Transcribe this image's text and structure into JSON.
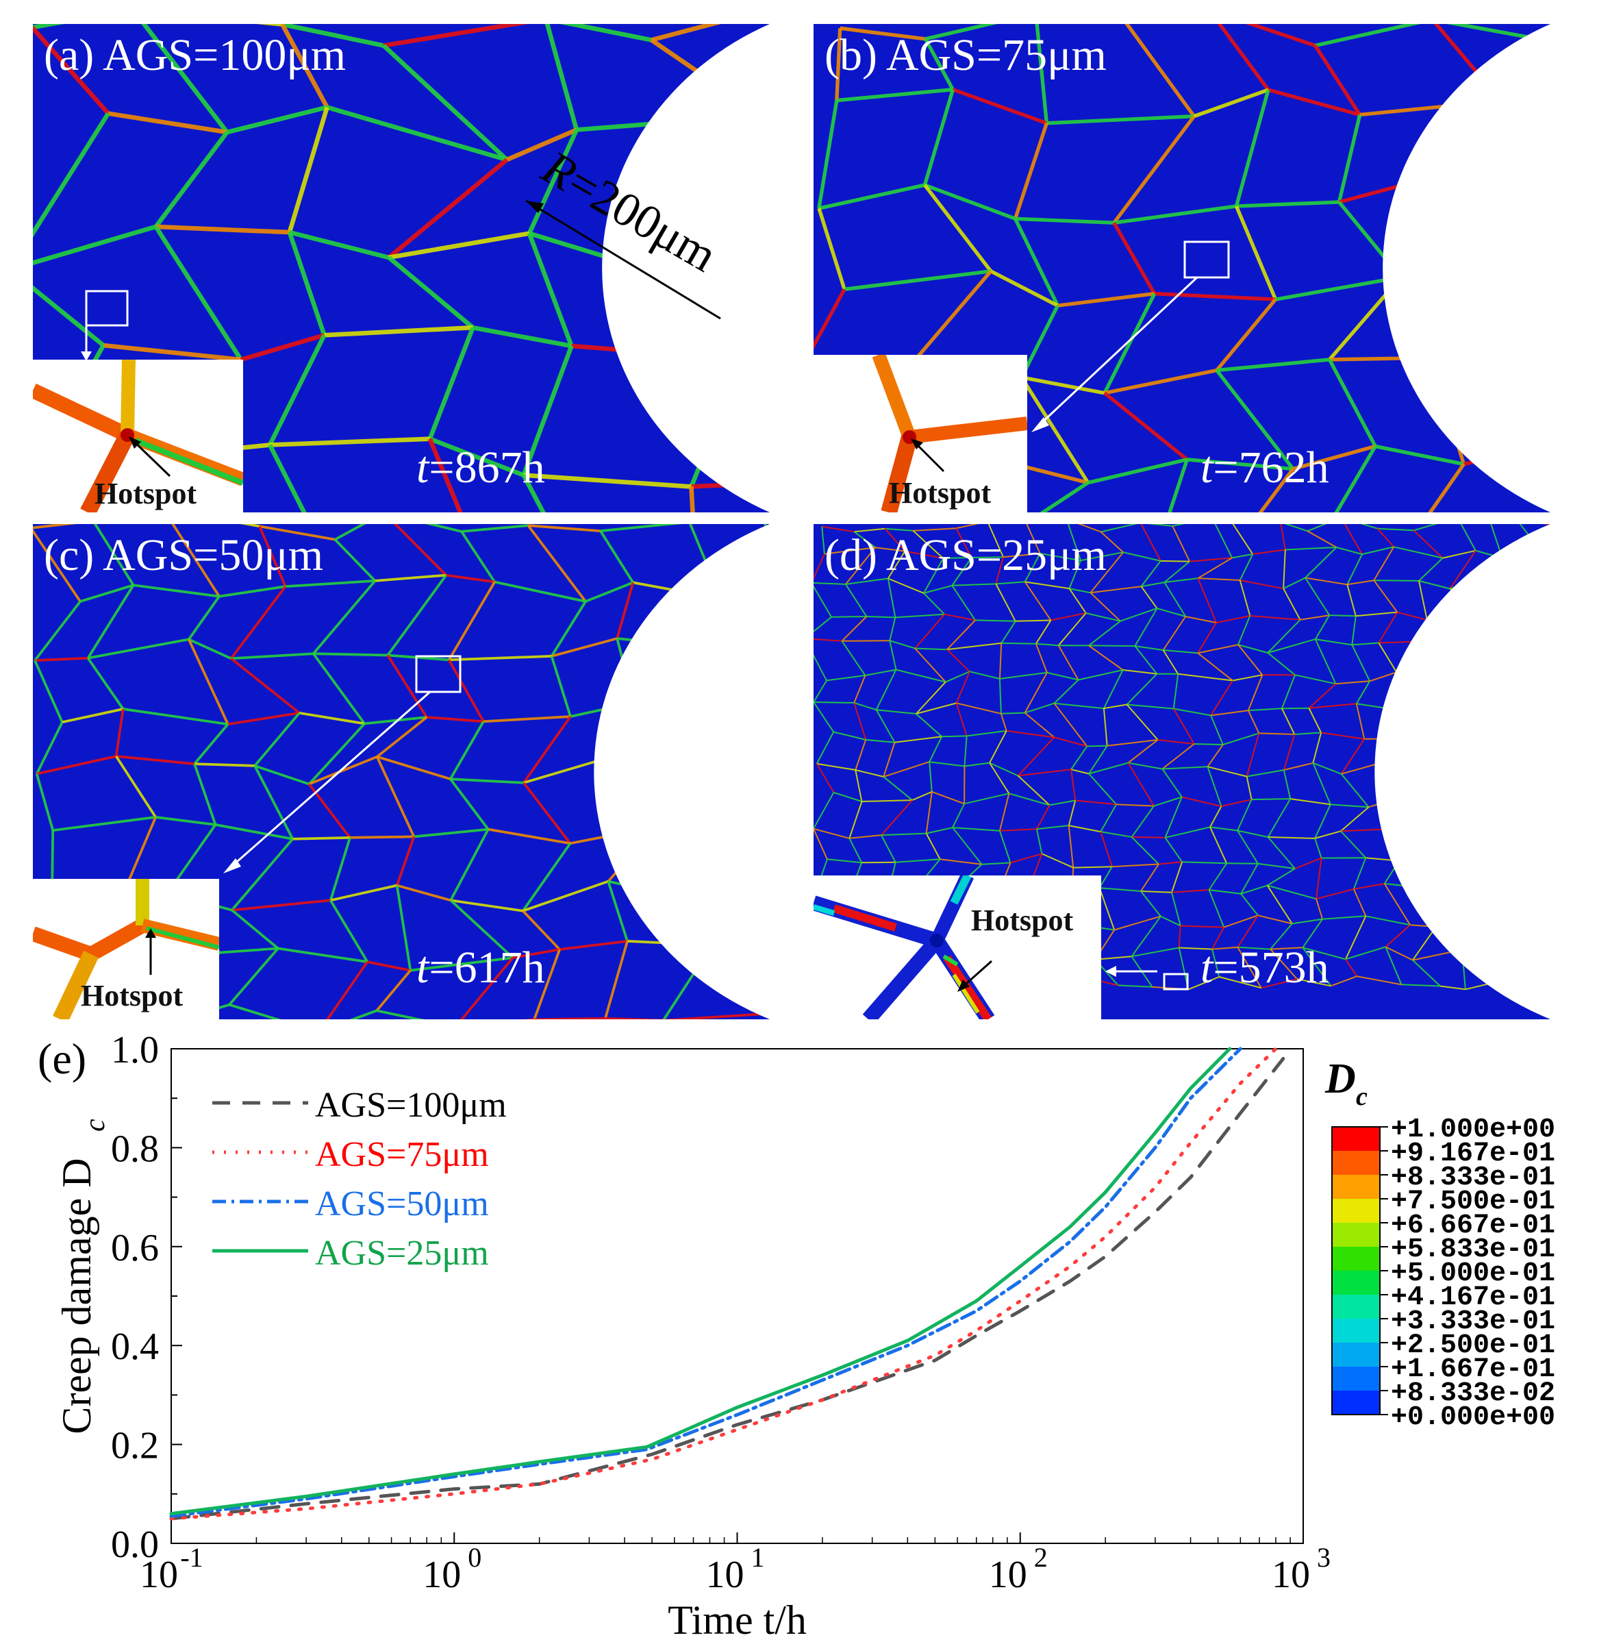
{
  "panels": [
    {
      "label": "(a) AGS=100μm",
      "time": "=867h",
      "time_prefix": "t",
      "hotspot": "Hotspot",
      "radius_label": "=200μm",
      "radius_prefix": "R"
    },
    {
      "label": "(b) AGS=75μm",
      "time": "=762h",
      "time_prefix": "t",
      "hotspot": "Hotspot"
    },
    {
      "label": "(c) AGS=50μm",
      "time": "=617h",
      "time_prefix": "t",
      "hotspot": "Hotspot"
    },
    {
      "label": "(d) AGS=25μm",
      "time": "=573h",
      "time_prefix": "t",
      "hotspot": "Hotspot"
    }
  ],
  "colors": {
    "background_blue": "#0b16c8",
    "boundary_green": "#22d23c",
    "boundary_yellow": "#d7e000",
    "boundary_orange": "#f08a00",
    "boundary_red": "#e81010"
  },
  "colorbar": {
    "title": "D",
    "title_sub": "c",
    "ticks": [
      "+1.000e+00",
      "+9.167e-01",
      "+8.333e-01",
      "+7.500e-01",
      "+6.667e-01",
      "+5.833e-01",
      "+5.000e-01",
      "+4.167e-01",
      "+3.333e-01",
      "+2.500e-01",
      "+1.667e-01",
      "+8.333e-02",
      "+0.000e+00"
    ],
    "colors": [
      "#ff0000",
      "#ff5a00",
      "#ffa000",
      "#e8e800",
      "#9bea00",
      "#30e000",
      "#00e040",
      "#00e6a0",
      "#00d8d8",
      "#00a8f0",
      "#0070ff",
      "#0030ff"
    ]
  },
  "chart_data": {
    "type": "line",
    "panel_label": "(e)",
    "xlabel": "Time  t/h",
    "ylabel": "Creep damage D",
    "ylabel_sub": "c",
    "xscale": "log",
    "xlim": [
      0.1,
      1000
    ],
    "ylim": [
      0.0,
      1.0
    ],
    "xticks": [
      {
        "value": 0.1,
        "base": "10",
        "exp": "-1"
      },
      {
        "value": 1,
        "base": "10",
        "exp": "0"
      },
      {
        "value": 10,
        "base": "10",
        "exp": "1"
      },
      {
        "value": 100,
        "base": "10",
        "exp": "2"
      },
      {
        "value": 1000,
        "base": "10",
        "exp": "3"
      }
    ],
    "yticks": [
      "0.0",
      "0.2",
      "0.4",
      "0.6",
      "0.8",
      "1.0"
    ],
    "legend_position": "top-left",
    "series": [
      {
        "name": "AGS=100μm",
        "color": "#555555",
        "dash": "26,18",
        "label_color": "#000000",
        "points": [
          [
            0.1,
            0.05
          ],
          [
            0.3,
            0.08
          ],
          [
            1,
            0.11
          ],
          [
            2,
            0.12
          ],
          [
            5,
            0.18
          ],
          [
            10,
            0.24
          ],
          [
            20,
            0.29
          ],
          [
            50,
            0.37
          ],
          [
            70,
            0.42
          ],
          [
            100,
            0.47
          ],
          [
            150,
            0.53
          ],
          [
            200,
            0.58
          ],
          [
            300,
            0.67
          ],
          [
            400,
            0.74
          ],
          [
            600,
            0.87
          ],
          [
            850,
            0.98
          ]
        ]
      },
      {
        "name": "AGS=75μm",
        "color": "#ff3b3b",
        "dash": "3,14",
        "label_color": "#ff0000",
        "points": [
          [
            0.1,
            0.05
          ],
          [
            0.3,
            0.07
          ],
          [
            1,
            0.1
          ],
          [
            2,
            0.12
          ],
          [
            5,
            0.17
          ],
          [
            10,
            0.23
          ],
          [
            20,
            0.29
          ],
          [
            50,
            0.38
          ],
          [
            70,
            0.43
          ],
          [
            100,
            0.49
          ],
          [
            150,
            0.56
          ],
          [
            200,
            0.62
          ],
          [
            300,
            0.72
          ],
          [
            400,
            0.81
          ],
          [
            600,
            0.93
          ],
          [
            800,
            1.0
          ]
        ]
      },
      {
        "name": "AGS=50μm",
        "color": "#1a6fe8",
        "dash": "20,8,4,8",
        "label_color": "#1a6fe8",
        "points": [
          [
            0.1,
            0.055
          ],
          [
            0.3,
            0.09
          ],
          [
            1,
            0.135
          ],
          [
            2,
            0.16
          ],
          [
            4.8,
            0.19
          ],
          [
            10,
            0.26
          ],
          [
            20,
            0.33
          ],
          [
            40,
            0.4
          ],
          [
            70,
            0.47
          ],
          [
            100,
            0.53
          ],
          [
            150,
            0.61
          ],
          [
            200,
            0.68
          ],
          [
            300,
            0.8
          ],
          [
            400,
            0.9
          ],
          [
            600,
            1.0
          ]
        ]
      },
      {
        "name": "AGS=25μm",
        "color": "#12b35e",
        "dash": "",
        "label_color": "#12a34a",
        "points": [
          [
            0.1,
            0.06
          ],
          [
            0.3,
            0.095
          ],
          [
            1,
            0.14
          ],
          [
            2,
            0.165
          ],
          [
            4.8,
            0.195
          ],
          [
            10,
            0.275
          ],
          [
            20,
            0.34
          ],
          [
            40,
            0.41
          ],
          [
            70,
            0.49
          ],
          [
            100,
            0.56
          ],
          [
            150,
            0.64
          ],
          [
            200,
            0.71
          ],
          [
            300,
            0.83
          ],
          [
            400,
            0.92
          ],
          [
            550,
            1.0
          ]
        ]
      }
    ]
  }
}
